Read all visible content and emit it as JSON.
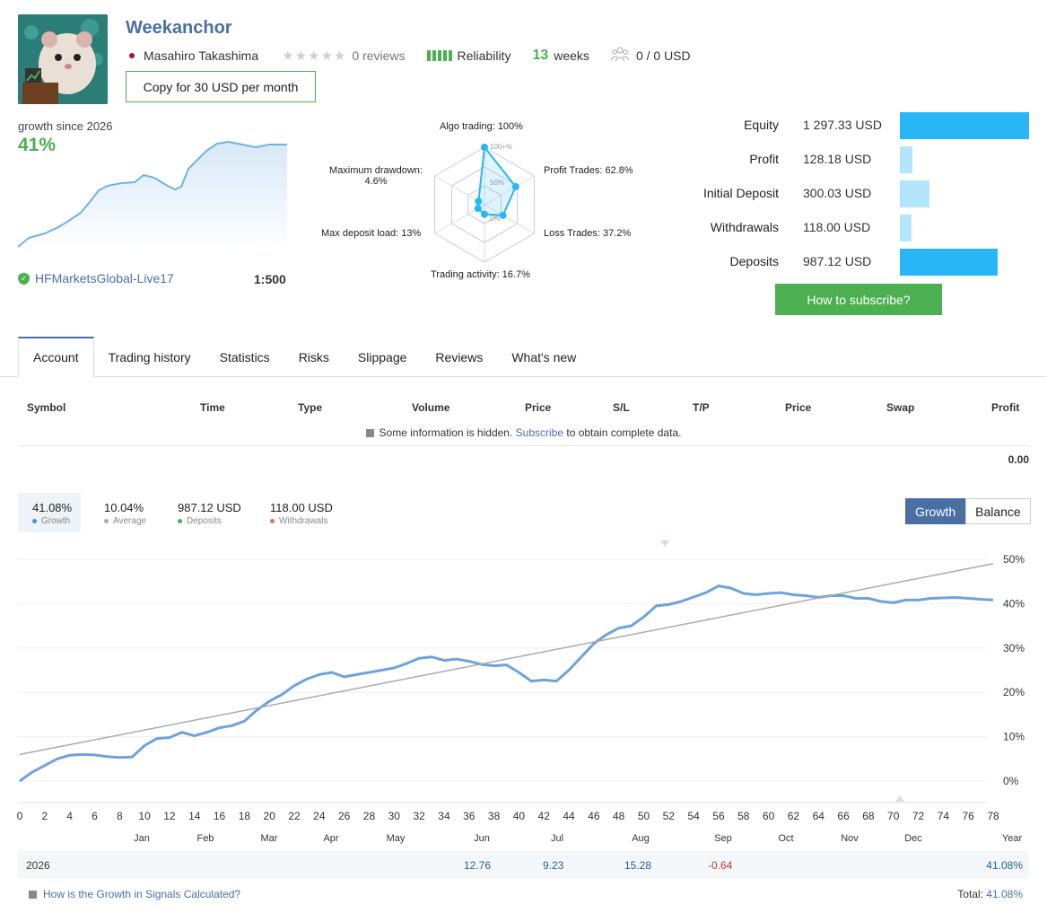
{
  "header": {
    "title": "Weekanchor",
    "author": "Masahiro Takashima",
    "stars": "★★★★★",
    "reviews": "0 reviews",
    "reliability": "Reliability",
    "weeks_num": "13",
    "weeks_label": "weeks",
    "subscribers": "0 / 0 USD",
    "copy_button": "Copy for 30 USD per month"
  },
  "summary": {
    "growth_label": "growth since 2026",
    "growth_value": "41%",
    "broker": "HFMarketsGlobal-Live17",
    "leverage": "1:500"
  },
  "radar": {
    "algo": "Algo trading: 100%",
    "profit_trades": "Profit Trades: 62.8%",
    "loss_trades": "Loss Trades: 37.2%",
    "activity": "Trading activity: 16.7%",
    "max_load": "Max deposit load: 13%",
    "max_dd_1": "Maximum drawdown:",
    "max_dd_2": "4.6%",
    "ring_100": "100+%",
    "ring_50": "50%",
    "ring_0": "0%",
    "values": [
      1.0,
      0.628,
      0.372,
      0.167,
      0.13,
      0.046
    ]
  },
  "equity": [
    {
      "label": "Equity",
      "value": "1 297.33 USD",
      "fraction": 1.0,
      "color": "#29b6f6"
    },
    {
      "label": "Profit",
      "value": "128.18 USD",
      "fraction": 0.1,
      "color": "#b3e5fc"
    },
    {
      "label": "Initial Deposit",
      "value": "300.03 USD",
      "fraction": 0.23,
      "color": "#b3e5fc"
    },
    {
      "label": "Withdrawals",
      "value": "118.00 USD",
      "fraction": 0.09,
      "color": "#b3e5fc"
    },
    {
      "label": "Deposits",
      "value": "987.12 USD",
      "fraction": 0.76,
      "color": "#29b6f6"
    }
  ],
  "subscribe_button": "How to subscribe?",
  "tabs": [
    "Account",
    "Trading history",
    "Statistics",
    "Risks",
    "Slippage",
    "Reviews",
    "What's new"
  ],
  "table": {
    "headers": [
      "Symbol",
      "Time",
      "Type",
      "Volume",
      "Price",
      "S/L",
      "T/P",
      "Price",
      "Swap",
      "Profit"
    ],
    "hidden_pre": "Some information is hidden.",
    "hidden_link": "Subscribe",
    "hidden_post": "to obtain complete data.",
    "total": "0.00"
  },
  "stats": [
    {
      "value": "41.08%",
      "label": "Growth",
      "color": "#4a90d9"
    },
    {
      "value": "10.04%",
      "label": "Average",
      "color": "#aaaaaa"
    },
    {
      "value": "987.12 USD",
      "label": "Deposits",
      "color": "#4caf50"
    },
    {
      "value": "118.00 USD",
      "label": "Withdrawals",
      "color": "#e5734a"
    }
  ],
  "toggle": {
    "growth": "Growth",
    "balance": "Balance"
  },
  "chart_data": {
    "type": "line",
    "x_ticks": [
      "0",
      "2",
      "4",
      "6",
      "8",
      "10",
      "12",
      "14",
      "16",
      "18",
      "20",
      "22",
      "24",
      "26",
      "28",
      "30",
      "32",
      "34",
      "36",
      "38",
      "40",
      "42",
      "44",
      "46",
      "48",
      "50",
      "52",
      "54",
      "56",
      "58",
      "60",
      "62",
      "64",
      "66",
      "68",
      "70",
      "72",
      "74",
      "76",
      "78"
    ],
    "month_labels": [
      "Jan",
      "Feb",
      "Mar",
      "Apr",
      "May",
      "Jun",
      "Jul",
      "Aug",
      "Sep",
      "Oct",
      "Nov",
      "Dec",
      "Year"
    ],
    "y_ticks": [
      "50%",
      "40%",
      "30%",
      "20%",
      "10%",
      "0%"
    ],
    "ylim": [
      0,
      50
    ],
    "xlim": [
      0,
      78
    ],
    "series": [
      {
        "name": "Growth",
        "color": "#6fa3db",
        "x": [
          0,
          1,
          2,
          3,
          4,
          5,
          6,
          7,
          8,
          9,
          10,
          11,
          12,
          13,
          14,
          15,
          16,
          17,
          18,
          19,
          20,
          21,
          22,
          23,
          24,
          25,
          26,
          27,
          28,
          29,
          30,
          31,
          32,
          33,
          34,
          35,
          36,
          37,
          38,
          39,
          40,
          41,
          42,
          43,
          44,
          45,
          46,
          47,
          48,
          49,
          50,
          51,
          52,
          53,
          54,
          55,
          56,
          57,
          58,
          59,
          60,
          61,
          62,
          63,
          64,
          65,
          66,
          67,
          68,
          69,
          70,
          71,
          72,
          73,
          74,
          75,
          76,
          77,
          78
        ],
        "y": [
          0,
          2,
          3.5,
          5,
          5.8,
          6,
          5.9,
          5.5,
          5.3,
          5.4,
          8,
          9.6,
          9.8,
          11,
          10.2,
          11,
          12,
          12.5,
          13.5,
          16,
          18,
          19.5,
          21.5,
          23,
          24,
          24.5,
          23.5,
          24,
          24.5,
          25,
          25.5,
          26.5,
          27.7,
          28,
          27.2,
          27.5,
          27,
          26.3,
          26,
          26.2,
          24.5,
          22.5,
          22.8,
          22.5,
          25,
          28,
          31,
          33,
          34.5,
          35,
          37,
          39.5,
          39.8,
          40.5,
          41.5,
          42.5,
          44,
          43.5,
          42.3,
          42,
          42.3,
          42.5,
          42,
          41.8,
          41.4,
          41.8,
          41.8,
          41.2,
          41.2,
          40.5,
          40.2,
          40.8,
          40.8,
          41.2,
          41.3,
          41.4,
          41.2,
          41,
          40.8
        ]
      },
      {
        "name": "Average",
        "color": "#aaaaaa",
        "x": [
          0,
          78
        ],
        "y": [
          6,
          49
        ]
      }
    ]
  },
  "year_row": {
    "year": "2026",
    "v1": "12.76",
    "v2": "9.23",
    "v3": "15.28",
    "v4": "-0.64",
    "total": "41.08%"
  },
  "footer": {
    "question": "How is the Growth in Signals Calculated?",
    "total_label": "Total:",
    "total_value": "41.08%"
  }
}
